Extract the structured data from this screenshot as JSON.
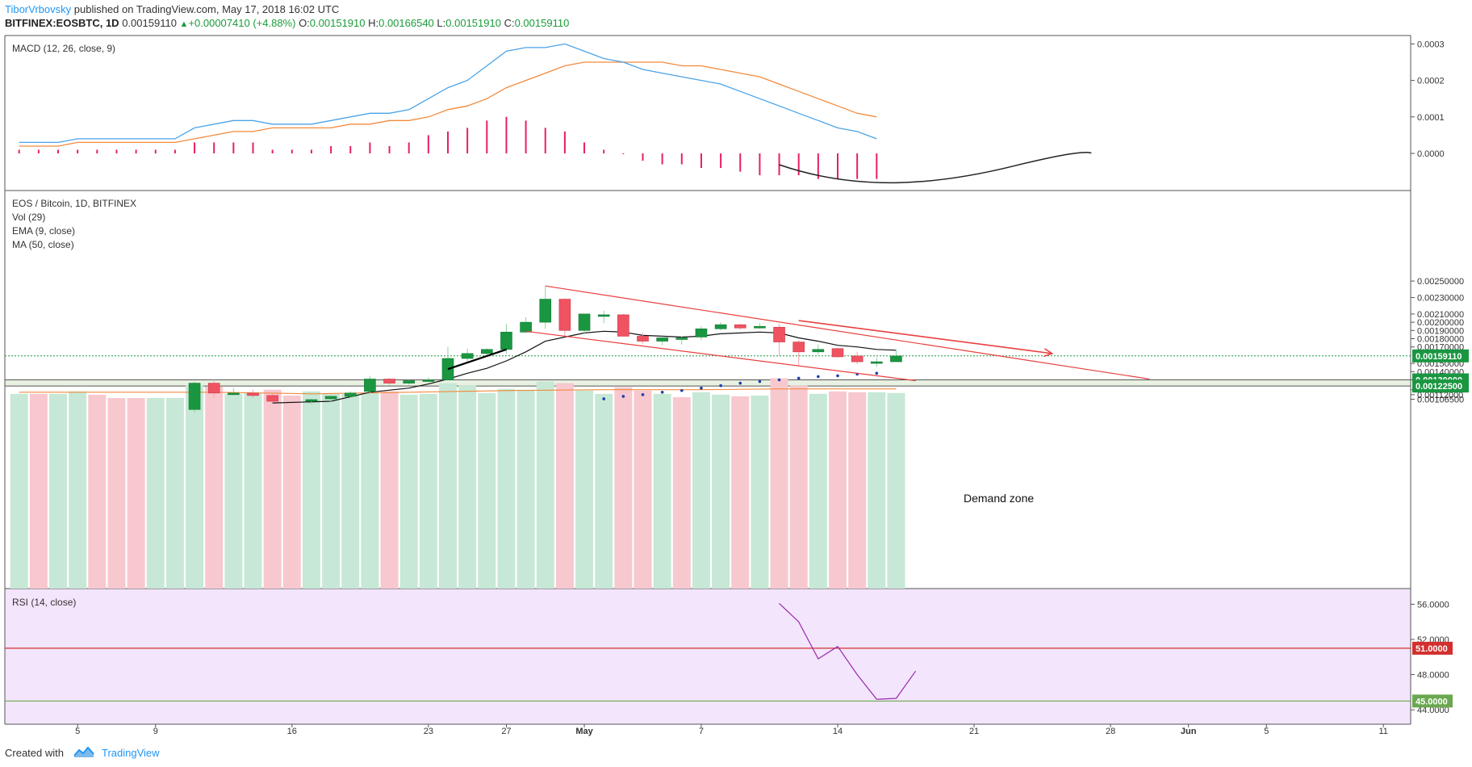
{
  "header": {
    "author": "TiborVrbovsky",
    "published": "published on TradingView.com, May 17, 2018 16:02 UTC",
    "symbol": "BITFINEX:EOSBTC, 1D",
    "last": "0.00159110",
    "change": "+0.00007410 (+4.88%)",
    "open_label": "O:",
    "open": "0.00151910",
    "high_label": "H:",
    "high": "0.00166540",
    "low_label": "L:",
    "low": "0.00151910",
    "close_label": "C:",
    "close": "0.00159110"
  },
  "footer": {
    "created_with": "Created with",
    "brand": "TradingView"
  },
  "icons": [
    "arrow-up-icon",
    "tradingview-logo-icon"
  ],
  "colors": {
    "up": "#1a9641",
    "down": "#ef5362",
    "upVol": "#c7e8d6",
    "downVol": "#f8c8cf",
    "macd": "#4aa3e8",
    "signal": "#f28a3c",
    "hist": "#e91e63",
    "zone": "#e9f2e2",
    "rsiBg": "#f3e5fb",
    "rsi": "#9c27b0",
    "trend": "#e8403f",
    "ema": "#111111",
    "ma": "#f28a3c",
    "dots": "#1a3fb0"
  },
  "chart_data": [
    {
      "type": "line",
      "title": "MACD (12, 26, close, 9)",
      "ylim": [
        -3e-05,
        0.0003
      ],
      "yticks": [
        "0.0003",
        "0.0002",
        "0.0001",
        "0.0000"
      ],
      "series": [
        {
          "role": "macd",
          "values": [
            3e-05,
            3e-05,
            3e-05,
            4e-05,
            4e-05,
            4e-05,
            4e-05,
            4e-05,
            4e-05,
            7e-05,
            8e-05,
            9e-05,
            9e-05,
            8e-05,
            8e-05,
            8e-05,
            9e-05,
            0.0001,
            0.00011,
            0.00011,
            0.00012,
            0.00015,
            0.00018,
            0.0002,
            0.00024,
            0.00028,
            0.00029,
            0.00029,
            0.0003,
            0.00028,
            0.00026,
            0.00025,
            0.00023,
            0.00022,
            0.00021,
            0.0002,
            0.00019,
            0.00017,
            0.00015,
            0.00013,
            0.00011,
            9e-05,
            7e-05,
            6e-05,
            4e-05
          ]
        },
        {
          "role": "signal",
          "values": [
            2e-05,
            2e-05,
            2e-05,
            3e-05,
            3e-05,
            3e-05,
            3e-05,
            3e-05,
            3e-05,
            4e-05,
            5e-05,
            6e-05,
            6e-05,
            7e-05,
            7e-05,
            7e-05,
            7e-05,
            8e-05,
            8e-05,
            9e-05,
            9e-05,
            0.0001,
            0.00012,
            0.00013,
            0.00015,
            0.00018,
            0.0002,
            0.00022,
            0.00024,
            0.00025,
            0.00025,
            0.00025,
            0.00025,
            0.00025,
            0.00024,
            0.00024,
            0.00023,
            0.00022,
            0.00021,
            0.00019,
            0.00017,
            0.00015,
            0.00013,
            0.00011,
            0.0001
          ]
        },
        {
          "role": "histogram",
          "values": [
            1e-05,
            1e-05,
            1e-05,
            1e-05,
            1e-05,
            1e-05,
            1e-05,
            1e-05,
            1e-05,
            3e-05,
            3e-05,
            3e-05,
            3e-05,
            1e-05,
            1e-05,
            1e-05,
            2e-05,
            2e-05,
            3e-05,
            2e-05,
            3e-05,
            5e-05,
            6e-05,
            7e-05,
            9e-05,
            0.0001,
            9e-05,
            7e-05,
            6e-05,
            3e-05,
            1e-05,
            0,
            -2e-05,
            -3e-05,
            -3e-05,
            -4e-05,
            -4e-05,
            -5e-05,
            -6e-05,
            -6e-05,
            -6e-05,
            -7e-05,
            -7e-05,
            -7e-05,
            -7e-05
          ]
        }
      ],
      "curve_points": [
        [
          39,
          -3.1e-05
        ],
        [
          43,
          -7.8e-05
        ],
        [
          47,
          -7e-05
        ],
        [
          51,
          -3.5e-05
        ],
        [
          55,
          0
        ]
      ]
    },
    {
      "type": "candlestick",
      "title": "EOS / Bitcoin, 1D, BITFINEX",
      "legend": [
        "Vol (29)",
        "EMA (9, close)",
        "MA (50, close)"
      ],
      "ylim": [
        0.00106,
        0.0025
      ],
      "yticks": [
        "0.00250000",
        "0.00230000",
        "0.00210000",
        "0.00200000",
        "0.00190000",
        "0.00180000",
        "0.00170000",
        "0.00150000",
        "0.00140000",
        "0.00130000",
        "0.00118000",
        "0.00112000",
        "0.00106500"
      ],
      "price_labels": [
        {
          "value": 0.0015911,
          "text": "0.00159110",
          "color": "#1a9641"
        },
        {
          "value": 0.0013,
          "text": "0.00130000",
          "color": "#1a9641"
        },
        {
          "value": 0.001225,
          "text": "0.00122500",
          "color": "#1a9641"
        }
      ],
      "demand_zone": {
        "from": 0.001225,
        "to": 0.0013,
        "label": "Demand zone"
      },
      "candles": [
        {
          "i": 9,
          "o": 0.00094,
          "h": 0.00128,
          "l": 0.0009,
          "c": 0.00126
        },
        {
          "i": 10,
          "o": 0.00126,
          "h": 0.00131,
          "l": 0.00108,
          "c": 0.00114
        },
        {
          "i": 11,
          "o": 0.00114,
          "h": 0.0012,
          "l": 0.00111,
          "c": 0.00114
        },
        {
          "i": 12,
          "o": 0.00114,
          "h": 0.00118,
          "l": 0.00108,
          "c": 0.00111
        },
        {
          "i": 13,
          "o": 0.00111,
          "h": 0.00113,
          "l": 0.00103,
          "c": 0.00104
        },
        {
          "i": 15,
          "o": 0.00104,
          "h": 0.00107,
          "l": 0.001,
          "c": 0.00106
        },
        {
          "i": 16,
          "o": 0.00107,
          "h": 0.00111,
          "l": 0.00103,
          "c": 0.0011
        },
        {
          "i": 17,
          "o": 0.0011,
          "h": 0.00116,
          "l": 0.00108,
          "c": 0.00114
        },
        {
          "i": 18,
          "o": 0.00116,
          "h": 0.00135,
          "l": 0.00114,
          "c": 0.00131
        },
        {
          "i": 19,
          "o": 0.00131,
          "h": 0.00132,
          "l": 0.00124,
          "c": 0.00126
        },
        {
          "i": 20,
          "o": 0.00126,
          "h": 0.0013,
          "l": 0.00124,
          "c": 0.00129
        },
        {
          "i": 21,
          "o": 0.00129,
          "h": 0.00133,
          "l": 0.00127,
          "c": 0.0013
        },
        {
          "i": 22,
          "o": 0.0013,
          "h": 0.0017,
          "l": 0.00129,
          "c": 0.00156
        },
        {
          "i": 23,
          "o": 0.00156,
          "h": 0.00168,
          "l": 0.00152,
          "c": 0.00162
        },
        {
          "i": 24,
          "o": 0.00162,
          "h": 0.00168,
          "l": 0.0016,
          "c": 0.00167
        },
        {
          "i": 25,
          "o": 0.00167,
          "h": 0.00198,
          "l": 0.00162,
          "c": 0.00188
        },
        {
          "i": 26,
          "o": 0.00188,
          "h": 0.00206,
          "l": 0.00187,
          "c": 0.002
        },
        {
          "i": 27,
          "o": 0.002,
          "h": 0.00244,
          "l": 0.00192,
          "c": 0.00228
        },
        {
          "i": 28,
          "o": 0.00228,
          "h": 0.00229,
          "l": 0.00182,
          "c": 0.0019
        },
        {
          "i": 29,
          "o": 0.0019,
          "h": 0.0021,
          "l": 0.00185,
          "c": 0.0021
        },
        {
          "i": 30,
          "o": 0.00208,
          "h": 0.00214,
          "l": 0.00199,
          "c": 0.00209
        },
        {
          "i": 31,
          "o": 0.00209,
          "h": 0.0021,
          "l": 0.00183,
          "c": 0.00183
        },
        {
          "i": 32,
          "o": 0.00183,
          "h": 0.00187,
          "l": 0.00174,
          "c": 0.00177
        },
        {
          "i": 33,
          "o": 0.00177,
          "h": 0.00183,
          "l": 0.00172,
          "c": 0.00181
        },
        {
          "i": 34,
          "o": 0.00181,
          "h": 0.00183,
          "l": 0.00173,
          "c": 0.00181
        },
        {
          "i": 35,
          "o": 0.00182,
          "h": 0.00195,
          "l": 0.00178,
          "c": 0.00192
        },
        {
          "i": 36,
          "o": 0.00192,
          "h": 0.002,
          "l": 0.0019,
          "c": 0.00197
        },
        {
          "i": 37,
          "o": 0.00197,
          "h": 0.00198,
          "l": 0.00191,
          "c": 0.00193
        },
        {
          "i": 38,
          "o": 0.00193,
          "h": 0.00199,
          "l": 0.00192,
          "c": 0.00195
        },
        {
          "i": 39,
          "o": 0.00194,
          "h": 0.00198,
          "l": 0.00159,
          "c": 0.00176
        },
        {
          "i": 40,
          "o": 0.00176,
          "h": 0.00178,
          "l": 0.00148,
          "c": 0.00164
        },
        {
          "i": 41,
          "o": 0.00164,
          "h": 0.00173,
          "l": 0.00161,
          "c": 0.00167
        },
        {
          "i": 42,
          "o": 0.00168,
          "h": 0.00169,
          "l": 0.00157,
          "c": 0.00158
        },
        {
          "i": 43,
          "o": 0.00159,
          "h": 0.00164,
          "l": 0.00149,
          "c": 0.00152
        },
        {
          "i": 44,
          "o": 0.00152,
          "h": 0.00157,
          "l": 0.00146,
          "c": 0.00152
        },
        {
          "i": 45,
          "o": 0.00152,
          "h": 0.00167,
          "l": 0.00152,
          "c": 0.00159
        }
      ],
      "volume_max": 0.00134,
      "volume": [
        {
          "i": 0,
          "v": 0.00113,
          "up": true
        },
        {
          "i": 1,
          "v": 0.00113,
          "up": false
        },
        {
          "i": 2,
          "v": 0.00113,
          "up": true
        },
        {
          "i": 3,
          "v": 0.00116,
          "up": true
        },
        {
          "i": 4,
          "v": 0.00112,
          "up": false
        },
        {
          "i": 5,
          "v": 0.00108,
          "up": false
        },
        {
          "i": 6,
          "v": 0.00108,
          "up": false
        },
        {
          "i": 7,
          "v": 0.00108,
          "up": true
        },
        {
          "i": 8,
          "v": 0.00108,
          "up": true
        },
        {
          "i": 9,
          "v": 0.00123,
          "up": true
        },
        {
          "i": 10,
          "v": 0.00122,
          "up": false
        },
        {
          "i": 11,
          "v": 0.00113,
          "up": true
        },
        {
          "i": 12,
          "v": 0.00114,
          "up": true
        },
        {
          "i": 13,
          "v": 0.00118,
          "up": false
        },
        {
          "i": 14,
          "v": 0.00111,
          "up": false
        },
        {
          "i": 15,
          "v": 0.00116,
          "up": true
        },
        {
          "i": 16,
          "v": 0.00114,
          "up": true
        },
        {
          "i": 17,
          "v": 0.00113,
          "up": true
        },
        {
          "i": 18,
          "v": 0.00114,
          "up": true
        },
        {
          "i": 19,
          "v": 0.00116,
          "up": false
        },
        {
          "i": 20,
          "v": 0.00112,
          "up": true
        },
        {
          "i": 21,
          "v": 0.00113,
          "up": true
        },
        {
          "i": 22,
          "v": 0.00126,
          "up": true
        },
        {
          "i": 23,
          "v": 0.00123,
          "up": true
        },
        {
          "i": 24,
          "v": 0.00114,
          "up": true
        },
        {
          "i": 25,
          "v": 0.00119,
          "up": true
        },
        {
          "i": 26,
          "v": 0.00118,
          "up": true
        },
        {
          "i": 27,
          "v": 0.00128,
          "up": true
        },
        {
          "i": 28,
          "v": 0.00126,
          "up": false
        },
        {
          "i": 29,
          "v": 0.00117,
          "up": true
        },
        {
          "i": 30,
          "v": 0.00113,
          "up": true
        },
        {
          "i": 31,
          "v": 0.00121,
          "up": false
        },
        {
          "i": 32,
          "v": 0.00117,
          "up": false
        },
        {
          "i": 33,
          "v": 0.00113,
          "up": true
        },
        {
          "i": 34,
          "v": 0.00109,
          "up": false
        },
        {
          "i": 35,
          "v": 0.00115,
          "up": true
        },
        {
          "i": 36,
          "v": 0.00112,
          "up": true
        },
        {
          "i": 37,
          "v": 0.0011,
          "up": false
        },
        {
          "i": 38,
          "v": 0.00111,
          "up": true
        },
        {
          "i": 39,
          "v": 0.00132,
          "up": false
        },
        {
          "i": 40,
          "v": 0.00123,
          "up": false
        },
        {
          "i": 41,
          "v": 0.00113,
          "up": true
        },
        {
          "i": 42,
          "v": 0.00116,
          "up": false
        },
        {
          "i": 43,
          "v": 0.00115,
          "up": false
        },
        {
          "i": 44,
          "v": 0.00115,
          "up": true
        },
        {
          "i": 45,
          "v": 0.00114,
          "up": true
        }
      ],
      "ema": [
        [
          13,
          0.00102
        ],
        [
          16,
          0.00104
        ],
        [
          18,
          0.00115
        ],
        [
          20,
          0.0012
        ],
        [
          21,
          0.00125
        ],
        [
          22,
          0.00131
        ],
        [
          23,
          0.00138
        ],
        [
          24,
          0.00144
        ],
        [
          25,
          0.00153
        ],
        [
          26,
          0.00164
        ],
        [
          27,
          0.00177
        ],
        [
          28,
          0.00182
        ],
        [
          29,
          0.00187
        ],
        [
          30,
          0.00189
        ],
        [
          31,
          0.00188
        ],
        [
          32,
          0.00184
        ],
        [
          33,
          0.00183
        ],
        [
          34,
          0.00182
        ],
        [
          35,
          0.00183
        ],
        [
          36,
          0.00186
        ],
        [
          37,
          0.00187
        ],
        [
          38,
          0.00188
        ],
        [
          39,
          0.00187
        ],
        [
          40,
          0.00181
        ],
        [
          41,
          0.00177
        ],
        [
          42,
          0.00172
        ],
        [
          43,
          0.0017
        ],
        [
          44,
          0.00167
        ],
        [
          45,
          0.00166
        ]
      ],
      "ma": [
        [
          0,
          0.00115
        ],
        [
          5,
          0.00115
        ],
        [
          8,
          0.00115
        ],
        [
          10,
          0.00115
        ],
        [
          15,
          0.00113
        ],
        [
          20,
          0.00115
        ],
        [
          25,
          0.00117
        ],
        [
          30,
          0.00118
        ],
        [
          35,
          0.00118
        ],
        [
          39,
          0.00119
        ],
        [
          45,
          0.00119
        ]
      ],
      "dots": [
        [
          30,
          0.00107
        ],
        [
          31,
          0.0011
        ],
        [
          32,
          0.00112
        ],
        [
          33,
          0.00115
        ],
        [
          34,
          0.00117
        ],
        [
          35,
          0.0012
        ],
        [
          36,
          0.00123
        ],
        [
          37,
          0.00126
        ],
        [
          38,
          0.00128
        ],
        [
          39,
          0.0013
        ],
        [
          40,
          0.00132
        ],
        [
          41,
          0.00134
        ],
        [
          42,
          0.00135
        ],
        [
          43,
          0.00137
        ],
        [
          44,
          0.00138
        ]
      ],
      "channel_upper": [
        [
          27,
          0.00244
        ],
        [
          58,
          0.00131
        ]
      ],
      "channel_lower": [
        [
          26,
          0.00189
        ],
        [
          46,
          0.00129
        ]
      ],
      "projection_arrow": [
        [
          40,
          0.00202
        ],
        [
          53,
          0.00162
        ]
      ],
      "thick_line": [
        [
          22,
          0.00143
        ],
        [
          25,
          0.00167
        ]
      ]
    },
    {
      "type": "line",
      "title": "RSI (14, close)",
      "ylim": [
        42,
        56
      ],
      "yticks": [
        "56.0000",
        "52.0000",
        "48.0000",
        "44.0000"
      ],
      "levels": [
        {
          "value": 51,
          "text": "51.0000",
          "color": "#d32f2f"
        },
        {
          "value": 45,
          "text": "45.0000",
          "color": "#6aa84f"
        }
      ],
      "values": [
        [
          39,
          56.1
        ],
        [
          40,
          54
        ],
        [
          41,
          49.8
        ],
        [
          42,
          51.2
        ],
        [
          43,
          48
        ],
        [
          44,
          45.2
        ],
        [
          45,
          45.3
        ],
        [
          46,
          48.4
        ]
      ]
    }
  ],
  "x_axis": [
    {
      "i": 3,
      "label": "5"
    },
    {
      "i": 7,
      "label": "9"
    },
    {
      "i": 14,
      "label": "16"
    },
    {
      "i": 21,
      "label": "23"
    },
    {
      "i": 25,
      "label": "27"
    },
    {
      "i": 29,
      "label": "May"
    },
    {
      "i": 35,
      "label": "7"
    },
    {
      "i": 42,
      "label": "14"
    },
    {
      "i": 49,
      "label": "21"
    },
    {
      "i": 56,
      "label": "28"
    },
    {
      "i": 60,
      "label": "Jun"
    },
    {
      "i": 64,
      "label": "5"
    },
    {
      "i": 70,
      "label": "11"
    }
  ]
}
